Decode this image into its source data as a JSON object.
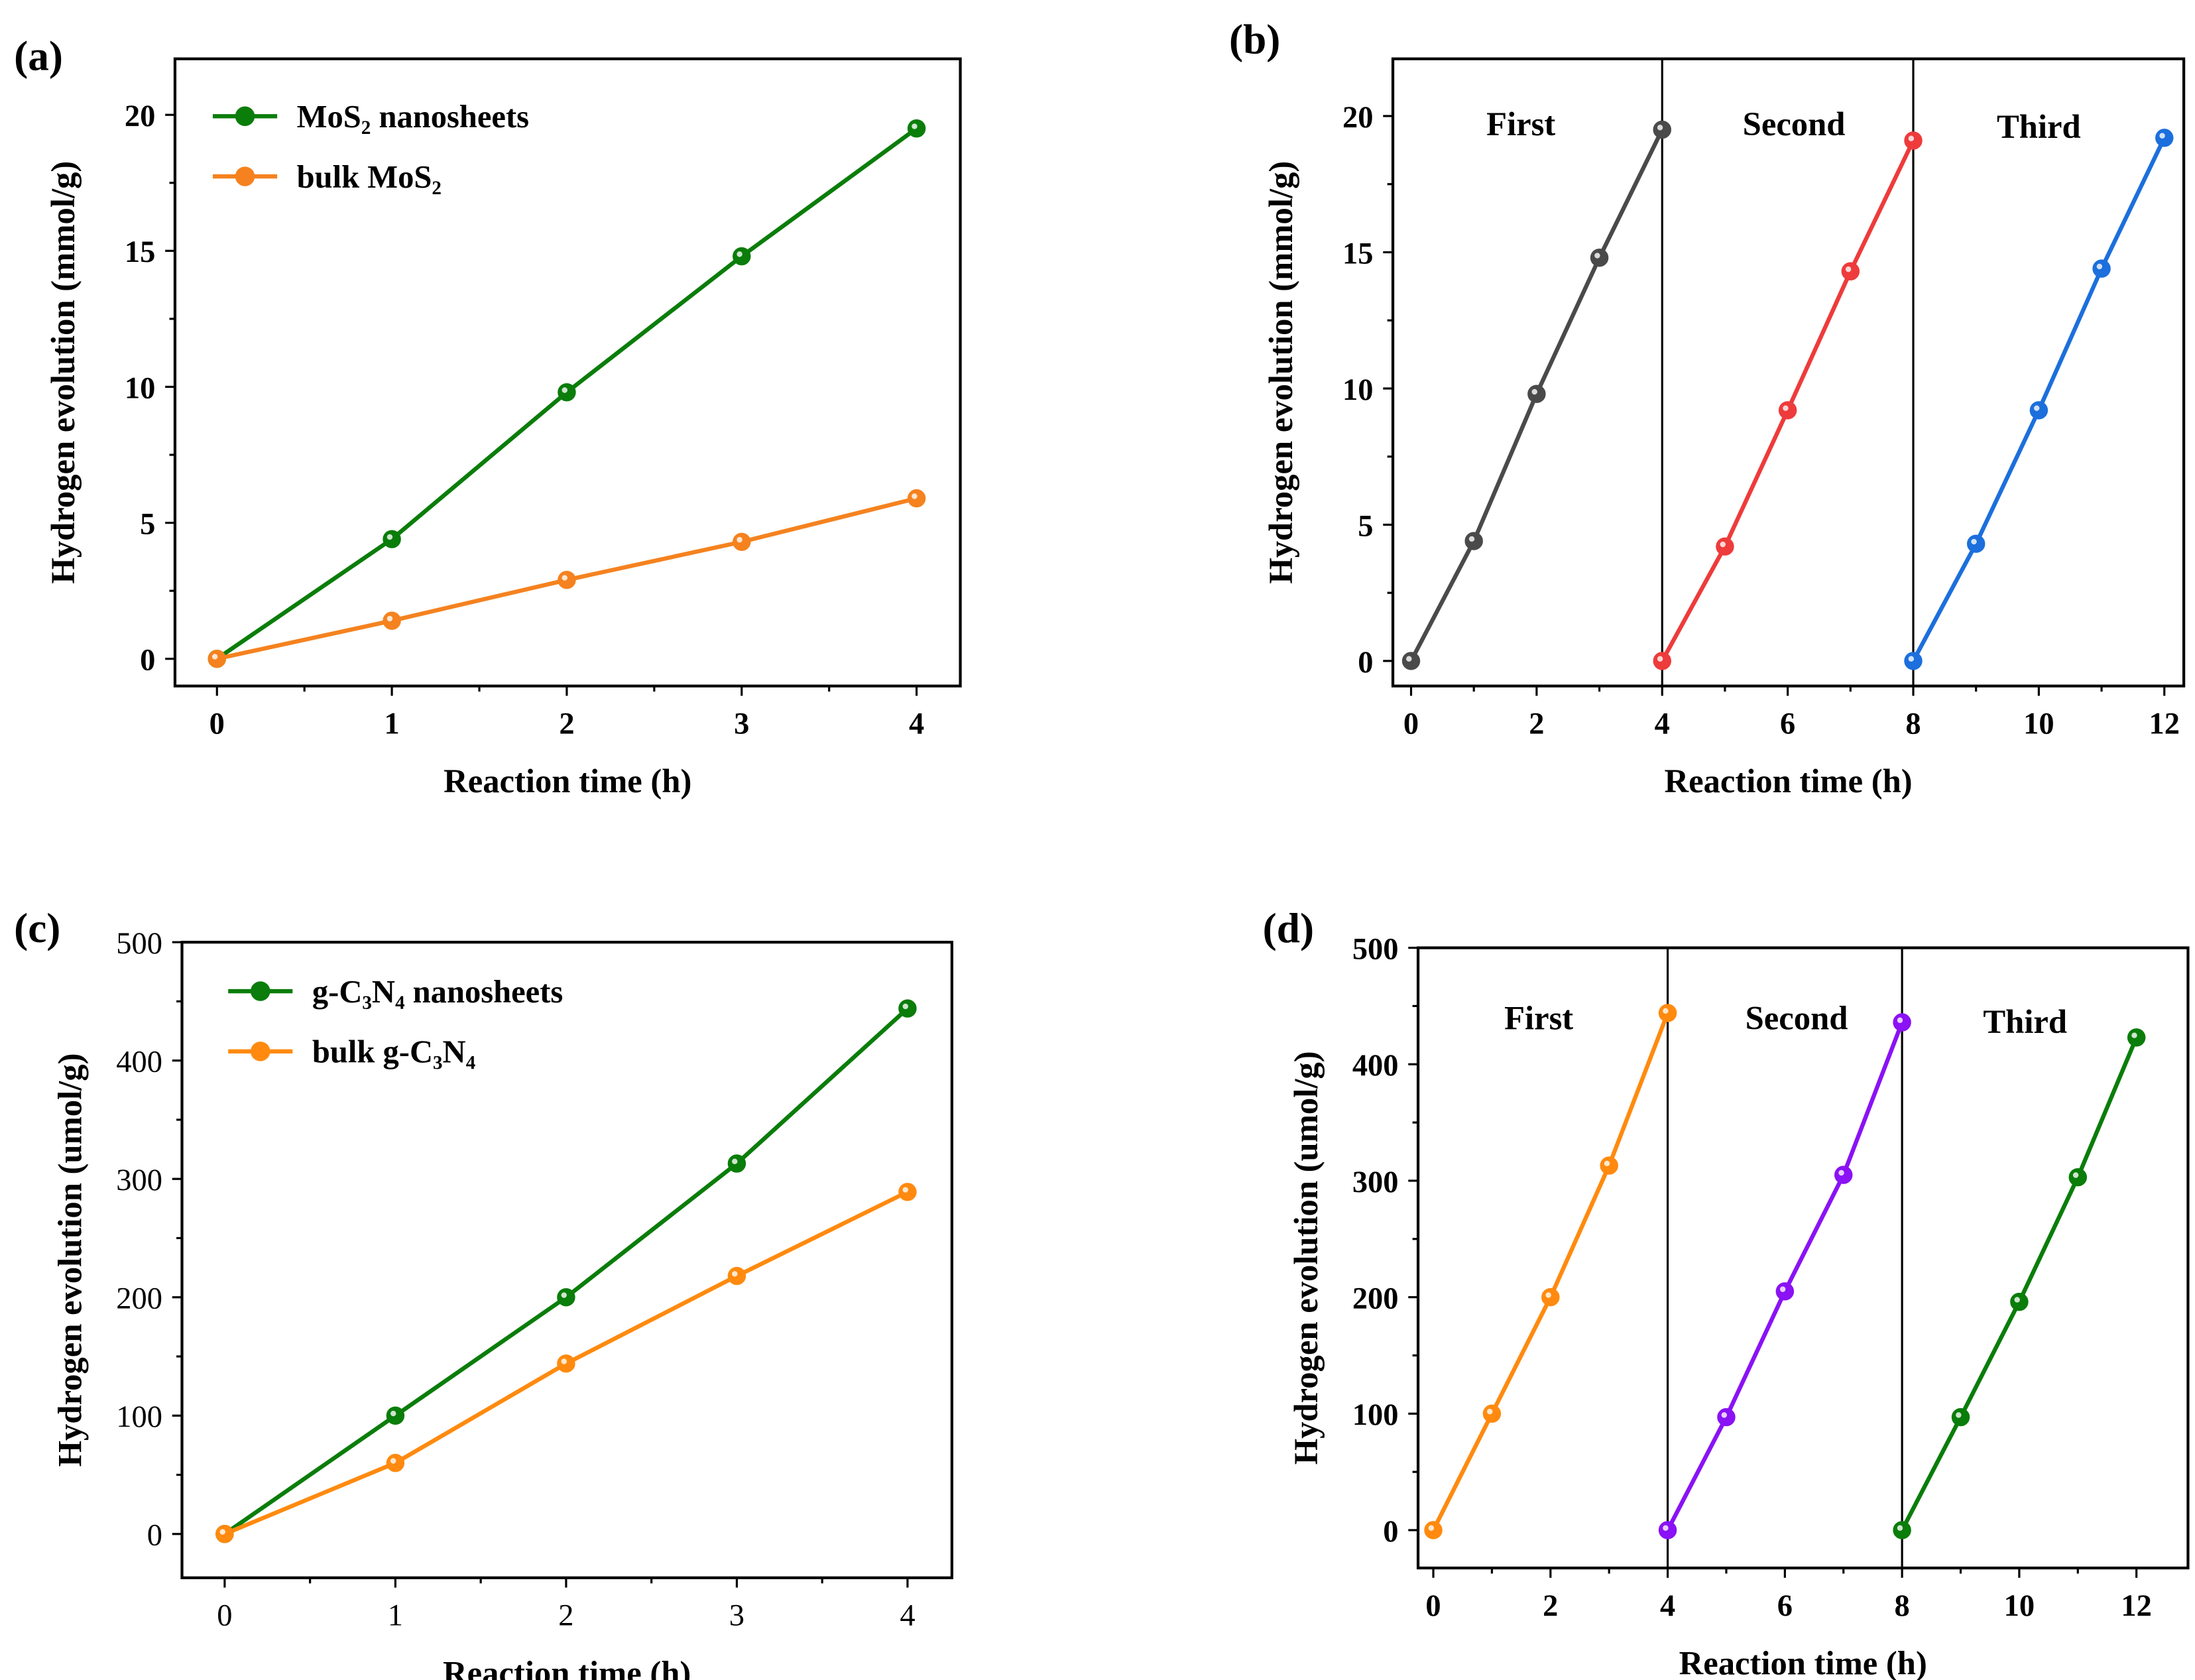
{
  "chart_data": [
    {
      "panel": "(a)",
      "type": "line",
      "xlabel": "Reaction time (h)",
      "ylabel": "Hydrogen evolution (mmol/g)",
      "xlim": [
        -0.24,
        4.25
      ],
      "ylim": [
        -1,
        22.06
      ],
      "xticks": [
        0,
        1,
        2,
        3,
        4
      ],
      "yticks": [
        0,
        5,
        10,
        15,
        20
      ],
      "legend_position": "top-left",
      "series": [
        {
          "name": "MoS₂ nanosheets",
          "color": "#0a7d0a",
          "x": [
            0,
            1,
            2,
            3,
            4
          ],
          "y": [
            0,
            4.4,
            9.8,
            14.8,
            19.5
          ]
        },
        {
          "name": "bulk MoS₂",
          "color": "#f5821f",
          "x": [
            0,
            1,
            2,
            3,
            4
          ],
          "y": [
            0,
            1.4,
            2.9,
            4.3,
            5.9
          ]
        }
      ]
    },
    {
      "panel": "(b)",
      "type": "line",
      "xlabel": "Reaction time (h)",
      "ylabel": "Hydrogen evolution (mmol/g)",
      "xlim": [
        -0.29,
        12.31
      ],
      "ylim": [
        -0.92,
        22.1
      ],
      "xticks": [
        0,
        2,
        4,
        6,
        8,
        10,
        12
      ],
      "yticks": [
        0,
        5,
        10,
        15,
        20
      ],
      "separators": [
        4,
        8
      ],
      "cycle_labels": [
        {
          "text": "First",
          "x": 1.75,
          "y": 19.3
        },
        {
          "text": "Second",
          "x": 6.1,
          "y": 19.3
        },
        {
          "text": "Third",
          "x": 10,
          "y": 19.2
        }
      ],
      "series": [
        {
          "name": "First",
          "color": "#4a4a4a",
          "x": [
            0,
            1,
            2,
            3,
            4
          ],
          "y": [
            0,
            4.4,
            9.8,
            14.8,
            19.5
          ]
        },
        {
          "name": "Second",
          "color": "#ee3b3b",
          "x": [
            4,
            5,
            6,
            7,
            8
          ],
          "y": [
            0,
            4.2,
            9.2,
            14.3,
            19.1
          ]
        },
        {
          "name": "Third",
          "color": "#1c6fdc",
          "x": [
            8,
            9,
            10,
            11,
            12
          ],
          "y": [
            0,
            4.3,
            9.2,
            14.4,
            19.2
          ]
        }
      ]
    },
    {
      "panel": "(c)",
      "type": "line",
      "xlabel": "Reaction time (h)",
      "ylabel": "Hydrogen evolution (umol/g)",
      "xlim": [
        -0.25,
        4.26
      ],
      "ylim": [
        -37,
        500
      ],
      "xticks": [
        0,
        1,
        2,
        3,
        4
      ],
      "yticks": [
        0,
        100,
        200,
        300,
        400,
        500
      ],
      "legend_position": "top-left",
      "series": [
        {
          "name": "g-C₃N₄ nanosheets",
          "color": "#0a7d0a",
          "x": [
            0,
            1,
            2,
            3,
            4
          ],
          "y": [
            0,
            100,
            200,
            313,
            444
          ]
        },
        {
          "name": "bulk g-C₃N₄",
          "color": "#ff8a0f",
          "x": [
            0,
            1,
            2,
            3,
            4
          ],
          "y": [
            0,
            60,
            144,
            218,
            289
          ]
        }
      ]
    },
    {
      "panel": "(d)",
      "type": "line",
      "xlabel": "Reaction time (h)",
      "ylabel": "Hydrogen evolution (umol/g)",
      "xlim": [
        -0.26,
        12.88
      ],
      "ylim": [
        -32.5,
        500
      ],
      "xticks": [
        0,
        2,
        4,
        6,
        8,
        10,
        12
      ],
      "yticks": [
        0,
        100,
        200,
        300,
        400,
        500
      ],
      "separators": [
        4,
        8
      ],
      "cycle_labels": [
        {
          "text": "First",
          "x": 1.8,
          "y": 430
        },
        {
          "text": "Second",
          "x": 6.2,
          "y": 430
        },
        {
          "text": "Third",
          "x": 10.1,
          "y": 427
        }
      ],
      "series": [
        {
          "name": "First",
          "color": "#ff8a0f",
          "x": [
            0,
            1,
            2,
            3,
            4
          ],
          "y": [
            0,
            100,
            200,
            313,
            444
          ]
        },
        {
          "name": "Second",
          "color": "#8a12f5",
          "x": [
            4,
            5,
            6,
            7,
            8
          ],
          "y": [
            0,
            97,
            205,
            305,
            436
          ]
        },
        {
          "name": "Third",
          "color": "#0a7d0a",
          "x": [
            8,
            9,
            10,
            11,
            12
          ],
          "y": [
            0,
            97,
            196,
            303,
            423
          ]
        }
      ]
    }
  ]
}
